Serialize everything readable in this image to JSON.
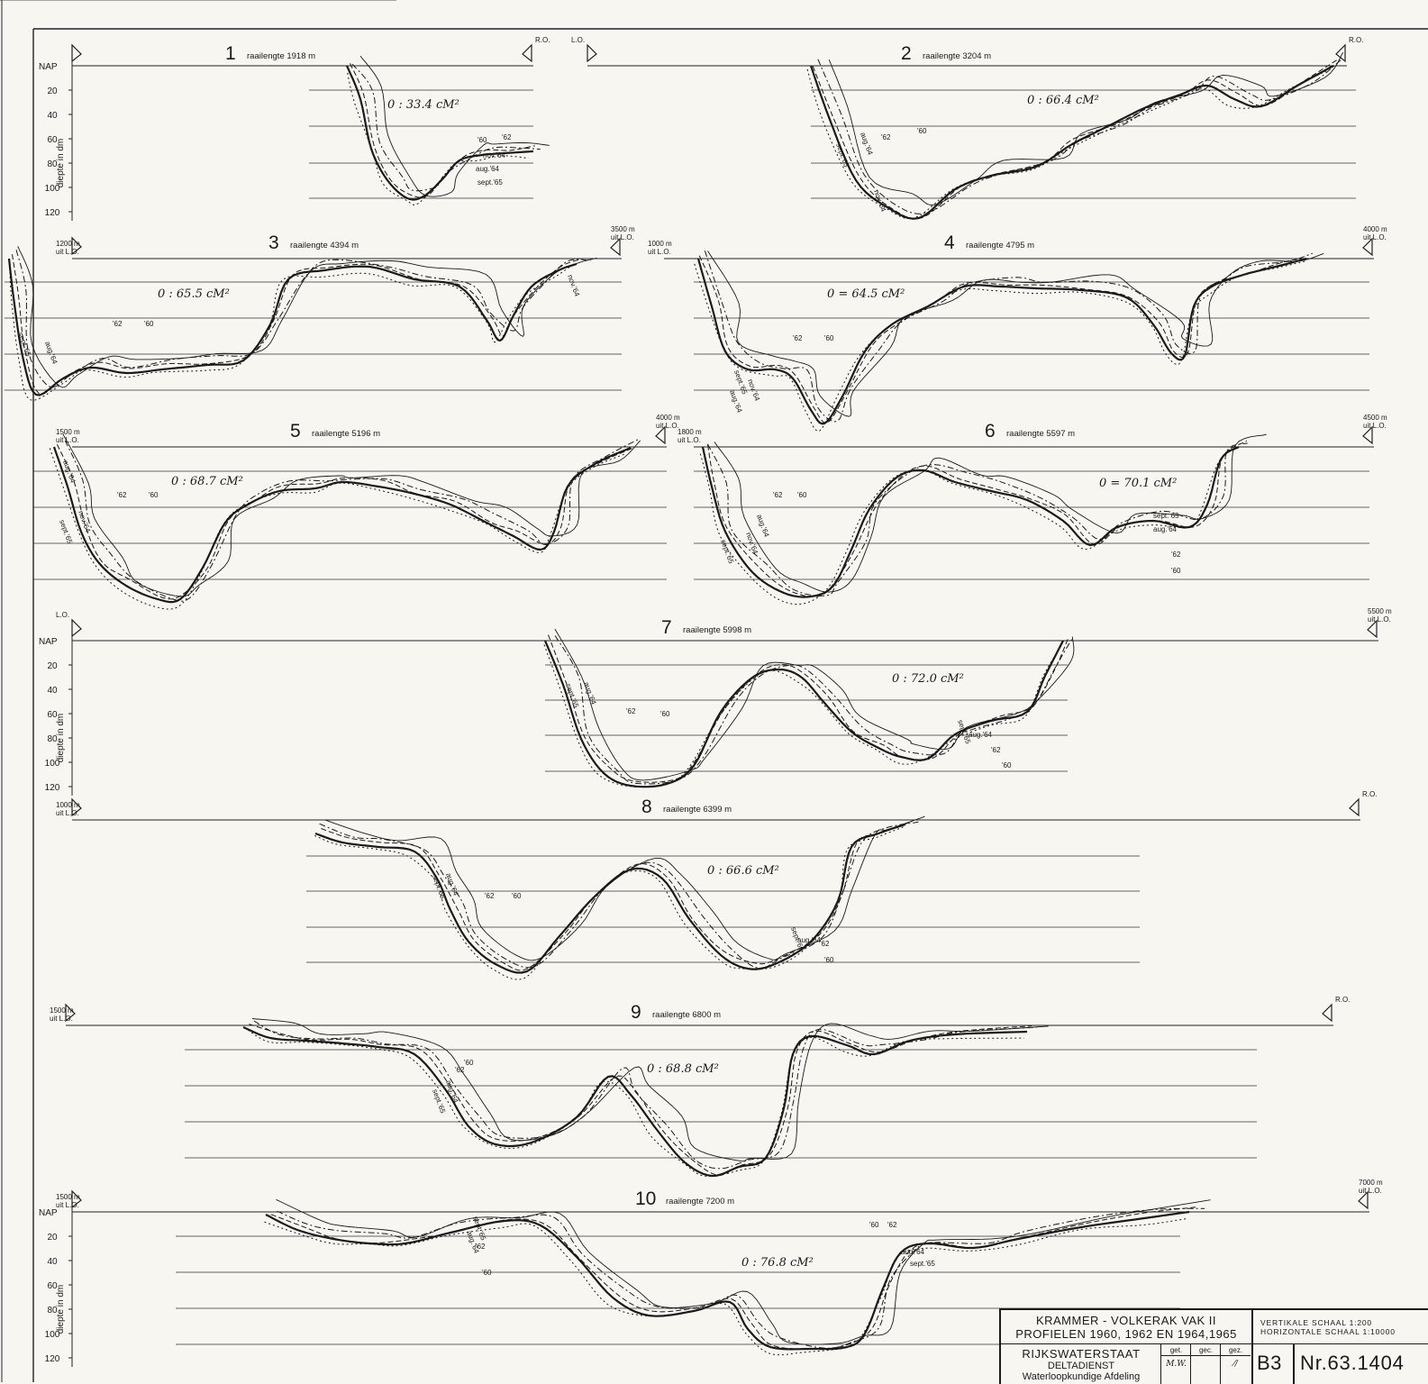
{
  "title_block": {
    "title_line1": "KRAMMER - VOLKERAK  VAK II",
    "title_line2": "PROFIELEN  1960, 1962  EN 1964,1965",
    "organisation": "RIJKSWATERSTAAT",
    "department": "DELTADIENST",
    "division": "Waterloopkundige Afdeling",
    "col_headers": [
      "get.",
      "gec.",
      "gez."
    ],
    "col_values": [
      "M.W.",
      "",
      "⁄/"
    ],
    "scale_vertical": "VERTIKALE  SCHAAL   1:200",
    "scale_horizontal": "HORIZONTALE  SCHAAL  1:10000",
    "sheet_code": "B3",
    "drawing_number": "Nr.63.1404"
  },
  "axis": {
    "datum": "NAP",
    "depth_label": "diepte in dm",
    "depth_ticks": [
      "20",
      "40",
      "60",
      "80",
      "100",
      "120"
    ]
  },
  "banks": {
    "left": "L.O.",
    "right": "R.O."
  },
  "profiles": [
    {
      "number": "1",
      "length_label": "raailengte  1918 m",
      "area": "0 : 33.4 cM²",
      "curve_labels": [
        "'60",
        "'62",
        "nov.'64",
        "aug.'64",
        "sept.'65"
      ],
      "offset_start": "",
      "offset_end": ""
    },
    {
      "number": "2",
      "length_label": "raailengte  3204 m",
      "area": "0 : 66.4 cM²",
      "curve_labels": [
        "sept.'65",
        "aug.'64",
        "'62",
        "'60",
        "nov.'64"
      ],
      "offset_start": "",
      "offset_end": ""
    },
    {
      "number": "3",
      "length_label": "raailengte  4394 m",
      "area": "0 : 65.5 cM²",
      "curve_labels": [
        "sept.'65",
        "aug.'64",
        "'62",
        "'60",
        "nov.'64"
      ],
      "offset_start": "1200 m\nuit L.O.",
      "offset_end": "3500 m\nuit L.O."
    },
    {
      "number": "4",
      "length_label": "raailengte  4795 m",
      "area": "0 = 64.5 cM²",
      "curve_labels": [
        "'62",
        "'60",
        "sept.'65",
        "nov.'64",
        "aug.'64"
      ],
      "offset_start": "1000 m\nuit L.O.",
      "offset_end": "4000 m\nuit L.O."
    },
    {
      "number": "5",
      "length_label": "raailengte  5196 m",
      "area": "0 : 68.7 cM²",
      "curve_labels": [
        "aug.'64",
        "'62",
        "'60",
        "nov.'64",
        "sept.'65"
      ],
      "offset_start": "1500 m\nuit L.O.",
      "offset_end": "4000 m\nuit L.O."
    },
    {
      "number": "6",
      "length_label": "raailengte  5597 m",
      "area": "0 = 70.1 cM²",
      "curve_labels": [
        "'62",
        "'60",
        "aug.'64",
        "nov.'64",
        "sept.'65",
        "sept. 65",
        "aug.'64",
        "'62",
        "'60"
      ],
      "offset_start": "1800 m\nuit L.O.",
      "offset_end": "4500 m\nuit L.O."
    },
    {
      "number": "7",
      "length_label": "raailengte  5998 m",
      "area": "0 : 72.0 cM²",
      "curve_labels": [
        "sept.'65",
        "aug.'64",
        "'62",
        "'60",
        "sept.'65",
        "aug.'64",
        "'62",
        "'60"
      ],
      "offset_start": "",
      "offset_end": "5500 m\nuit L.O."
    },
    {
      "number": "8",
      "length_label": "raailengte  6399 m",
      "area": "0 : 66.6 cM²",
      "curve_labels": [
        "sept.'65",
        "aug.'64",
        "'62",
        "'60",
        "sept.'65",
        "aug.'64",
        "'62",
        "'60"
      ],
      "offset_start": "1000 m\nuit L.O.",
      "offset_end": ""
    },
    {
      "number": "9",
      "length_label": "raailengte  6800 m",
      "area": "0 : 68.8 cM²",
      "curve_labels": [
        "'60",
        "'62",
        "aug.'64",
        "sept.'65"
      ],
      "offset_start": "1500 m\nuit L.O.",
      "offset_end": ""
    },
    {
      "number": "10",
      "length_label": "raailengte  7200 m",
      "area": "0 : 76.8 cM²",
      "curve_labels": [
        "sept.'65",
        "aug.'64",
        "'62",
        "'60",
        "'60",
        "'62",
        "aug.'64",
        "sept.'65"
      ],
      "offset_start": "1500 m\nuit L.O.",
      "offset_end": "7000 m\nuit L.O."
    }
  ]
}
